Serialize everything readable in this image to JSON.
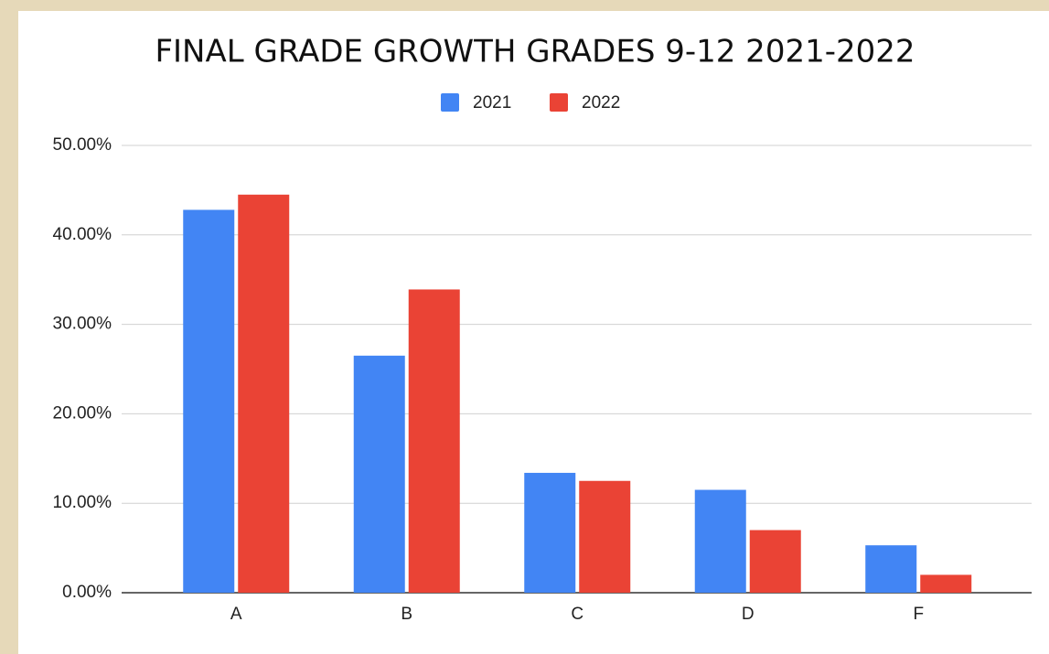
{
  "chart_data": {
    "type": "bar",
    "title": "FINAL GRADE GROWTH GRADES 9-12 2021-2022",
    "categories": [
      "A",
      "B",
      "C",
      "D",
      "F"
    ],
    "series": [
      {
        "name": "2021",
        "color": "#4285f4",
        "values": [
          42.8,
          26.5,
          13.4,
          11.5,
          5.3
        ]
      },
      {
        "name": "2022",
        "color": "#ea4335",
        "values": [
          44.5,
          33.9,
          12.5,
          7.0,
          2.0
        ]
      }
    ],
    "ylim": [
      0,
      50
    ],
    "yticks": [
      {
        "value": 0,
        "label": "0.00%"
      },
      {
        "value": 10,
        "label": "10.00%"
      },
      {
        "value": 20,
        "label": "20.00%"
      },
      {
        "value": 30,
        "label": "30.00%"
      },
      {
        "value": 40,
        "label": "40.00%"
      },
      {
        "value": 50,
        "label": "50.00%"
      }
    ],
    "grid": true,
    "legend": "top"
  }
}
